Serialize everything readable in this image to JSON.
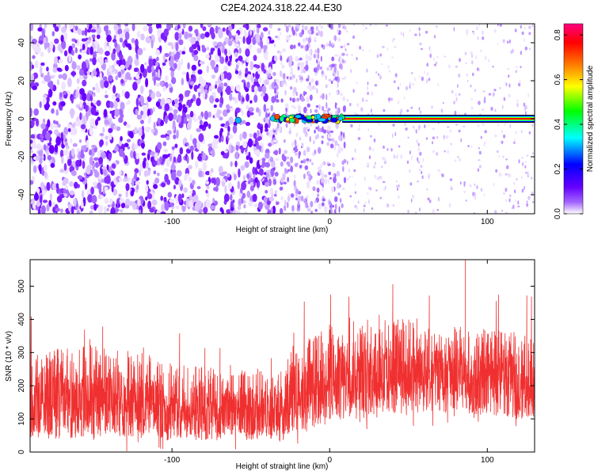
{
  "title": "C2E4.2024.318.22.44.E30",
  "chart_data": [
    {
      "type": "heatmap",
      "xlabel": "Height of straight line (km)",
      "ylabel": "Frequency (Hz)",
      "xlim": [
        -190,
        130
      ],
      "ylim": [
        -50,
        50
      ],
      "x_ticks": [
        -100,
        0,
        100
      ],
      "y_ticks": [
        -40,
        -20,
        0,
        20,
        40
      ],
      "grid": false,
      "colorbar": {
        "label": "Normalized spectral amplitude",
        "range": [
          0.0,
          0.85
        ],
        "ticks": [
          0.0,
          0.2,
          0.4,
          0.6,
          0.8
        ],
        "colormap": [
          "#ffffff",
          "#a366ff",
          "#6600ff",
          "#0000ff",
          "#00ffff",
          "#00ff00",
          "#ffff00",
          "#ff8000",
          "#ff0000",
          "#ff0080"
        ]
      },
      "features": {
        "noise_region_x": [
          -190,
          -35
        ],
        "carrier_start_x": -37,
        "carrier_frequency": 0,
        "carrier_peak_amplitude": 0.85
      }
    },
    {
      "type": "line",
      "xlabel": "Height of straight line (km)",
      "ylabel": "SNR (10 * v/v)",
      "xlim": [
        -190,
        130
      ],
      "ylim": [
        0,
        580
      ],
      "x_ticks": [
        -100,
        0,
        100
      ],
      "y_ticks": [
        0,
        100,
        200,
        300,
        400,
        500
      ],
      "grid": false,
      "series": [
        {
          "color": "#f03030",
          "envelope": {
            "x": [
              -190,
              -160,
              -140,
              -120,
              -100,
              -80,
              -60,
              -40,
              -28,
              -25,
              -10,
              0,
              20,
              40,
              60,
              80,
              100,
              120,
              130
            ],
            "low": [
              40,
              40,
              40,
              40,
              35,
              35,
              35,
              35,
              30,
              60,
              70,
              90,
              100,
              110,
              115,
              120,
              110,
              100,
              100
            ],
            "high": [
              300,
              320,
              330,
              300,
              270,
              260,
              250,
              250,
              250,
              330,
              350,
              390,
              400,
              410,
              400,
              380,
              370,
              360,
              350
            ],
            "spikes_max": 580
          }
        }
      ]
    }
  ]
}
